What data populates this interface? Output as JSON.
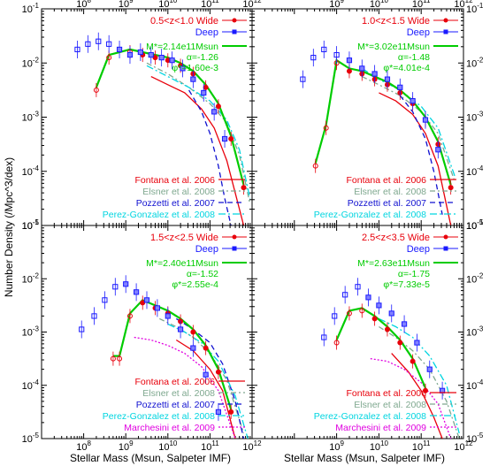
{
  "figure": {
    "xlabel": "Stellar Mass (Msun,  Salpeter IMF)",
    "ylabel": "Number Density (/Mpc^3/dex)",
    "colors": {
      "wide": "#e8000b",
      "deep": "#1a1aff",
      "fit": "#00cc00",
      "fontana": "#e8000b",
      "elsner": "#7fa88f",
      "pozzetti": "#1010d0",
      "perez": "#00d5e0",
      "marchesini": "#e000e0",
      "axis": "#000000"
    },
    "xticks": [
      {
        "v": 8,
        "b": "10",
        "e": "8"
      },
      {
        "v": 9,
        "b": "10",
        "e": "9"
      },
      {
        "v": 10,
        "b": "10",
        "e": "10"
      },
      {
        "v": 11,
        "b": "10",
        "e": "11"
      },
      {
        "v": 12,
        "b": "10",
        "e": "12"
      }
    ],
    "yticks": [
      {
        "v": -5,
        "b": "10",
        "e": "-5"
      },
      {
        "v": -4,
        "b": "10",
        "e": "-4"
      },
      {
        "v": -3,
        "b": "10",
        "e": "-3"
      },
      {
        "v": -2,
        "b": "10",
        "e": "-2"
      },
      {
        "v": -1,
        "b": "10",
        "e": "-1"
      }
    ]
  },
  "chart_data": [
    {
      "type": "scatter",
      "panel": "top-left",
      "xscale": "log",
      "yscale": "log",
      "xlim": [
        10000000.0,
        1000000000000.0
      ],
      "ylim": [
        1e-05,
        0.1
      ],
      "legend": [
        {
          "label": "0.5<z<1.0 Wide",
          "color": "#e8000b"
        },
        {
          "label": "Deep",
          "color": "#1a1aff"
        }
      ],
      "fit_text": [
        "M*=2.14e11Msun",
        "α=-1.26",
        "φ*=1.60e-3"
      ],
      "lit_legend": [
        "Fontana et al. 2006",
        "Elsner et al. 2008",
        "Pozzetti et al. 2007",
        "Perez-Gonzalez et al. 2008"
      ],
      "series": [
        {
          "name": "0.5<z<1.0 Wide",
          "logmass": [
            8.3,
            8.6,
            9.1,
            9.4,
            9.7,
            10.0,
            10.3,
            10.6,
            10.9,
            11.2,
            11.5,
            11.8
          ],
          "logphi": [
            -2.5,
            -1.9,
            -1.8,
            -1.85,
            -1.9,
            -1.95,
            -2.05,
            -2.2,
            -2.45,
            -2.8,
            -3.4,
            -4.3
          ]
        },
        {
          "name": "Deep",
          "logmass": [
            7.85,
            8.1,
            8.35,
            8.6,
            8.85,
            9.1,
            9.35,
            9.6,
            9.85,
            10.1,
            10.35,
            10.6,
            10.85,
            11.1,
            11.35
          ],
          "logphi": [
            -1.75,
            -1.65,
            -1.6,
            -1.65,
            -1.75,
            -1.85,
            -1.8,
            -1.85,
            -1.9,
            -1.95,
            -2.1,
            -2.3,
            -2.55,
            -2.9,
            -3.4
          ]
        },
        {
          "name": "Fontana et al. 2006",
          "logmass": [
            9.6,
            10.0,
            10.4,
            10.8,
            11.1,
            11.4,
            11.6,
            11.8
          ],
          "logphi": [
            -2.25,
            -2.4,
            -2.55,
            -2.85,
            -3.2,
            -3.8,
            -4.4,
            -5.0
          ]
        },
        {
          "name": "Elsner et al. 2008",
          "logmass": [
            9.5,
            10.0,
            10.5,
            11.0,
            11.4,
            11.7,
            11.95
          ],
          "logphi": [
            -2.0,
            -2.2,
            -2.45,
            -2.75,
            -3.1,
            -3.7,
            -4.6
          ]
        },
        {
          "name": "Pozzetti et al. 2007",
          "logmass": [
            10.5,
            10.8,
            11.0,
            11.2,
            11.35,
            11.5
          ],
          "logphi": [
            -2.5,
            -2.9,
            -3.3,
            -3.9,
            -4.5,
            -5.0
          ]
        },
        {
          "name": "Perez-Gonzalez et al. 2008",
          "logmass": [
            9.5,
            10.0,
            10.5,
            11.0,
            11.4,
            11.7,
            11.95
          ],
          "logphi": [
            -2.05,
            -2.25,
            -2.45,
            -2.7,
            -3.05,
            -3.6,
            -4.5
          ]
        }
      ]
    },
    {
      "type": "scatter",
      "panel": "top-right",
      "xscale": "log",
      "yscale": "log",
      "xlim": [
        10000000.0,
        1000000000000.0
      ],
      "ylim": [
        1e-05,
        0.1
      ],
      "legend": [
        {
          "label": "1.0<z<1.5 Wide",
          "color": "#e8000b"
        },
        {
          "label": "Deep",
          "color": "#1a1aff"
        }
      ],
      "fit_text": [
        "M*=3.02e11Msun",
        "α=-1.48",
        "φ*=4.01e-4"
      ],
      "lit_legend": [
        "Fontana et al. 2006",
        "Elsner et al. 2008",
        "Pozzetti et al. 2007",
        "Perez-Gonzalez et al. 2008"
      ],
      "series": [
        {
          "name": "1.0<z<1.5 Wide",
          "logmass": [
            8.5,
            8.75,
            9.0,
            9.3,
            9.6,
            9.9,
            10.2,
            10.5,
            10.8,
            11.1,
            11.4,
            11.7
          ],
          "logphi": [
            -3.9,
            -3.2,
            -2.0,
            -2.15,
            -2.2,
            -2.3,
            -2.4,
            -2.55,
            -2.75,
            -3.05,
            -3.5,
            -4.3
          ]
        },
        {
          "name": "Deep",
          "logmass": [
            8.2,
            8.45,
            8.7,
            9.0,
            9.3,
            9.6,
            9.9,
            10.2,
            10.5,
            10.8,
            11.1,
            11.4
          ],
          "logphi": [
            -2.3,
            -1.9,
            -1.75,
            -1.85,
            -1.95,
            -2.1,
            -2.2,
            -2.3,
            -2.45,
            -2.7,
            -3.05,
            -3.6
          ]
        },
        {
          "name": "Fontana et al. 2006",
          "logmass": [
            10.0,
            10.4,
            10.8,
            11.1,
            11.4,
            11.7
          ],
          "logphi": [
            -2.55,
            -2.7,
            -2.95,
            -3.3,
            -3.9,
            -5.0
          ]
        },
        {
          "name": "Elsner et al. 2008",
          "logmass": [
            9.6,
            10.0,
            10.5,
            11.0,
            11.4,
            11.8
          ],
          "logphi": [
            -2.25,
            -2.4,
            -2.6,
            -2.9,
            -3.3,
            -4.2
          ]
        },
        {
          "name": "Pozzetti et al. 2007",
          "logmass": [
            10.5,
            10.8,
            11.1,
            11.3,
            11.5
          ],
          "logphi": [
            -2.6,
            -2.9,
            -3.4,
            -4.0,
            -4.8
          ]
        },
        {
          "name": "Perez-Gonzalez et al. 2008",
          "logmass": [
            9.6,
            10.0,
            10.5,
            11.0,
            11.4,
            11.8
          ],
          "logphi": [
            -2.1,
            -2.3,
            -2.5,
            -2.8,
            -3.2,
            -4.1
          ]
        }
      ]
    },
    {
      "type": "scatter",
      "panel": "bottom-left",
      "xscale": "log",
      "yscale": "log",
      "xlim": [
        10000000.0,
        1000000000000.0
      ],
      "ylim": [
        1e-05,
        0.1
      ],
      "legend": [
        {
          "label": "1.5<z<2.5 Wide",
          "color": "#e8000b"
        },
        {
          "label": "Deep",
          "color": "#1a1aff"
        }
      ],
      "fit_text": [
        "M*=2.40e11Msun",
        "α=-1.52",
        "φ*=2.55e-4"
      ],
      "lit_legend": [
        "Fontana et al. 2006",
        "Elsner et al. 2008",
        "Pozzetti et al. 2007",
        "Perez-Gonzalez et al. 2008",
        "Marchesini et al. 2009"
      ],
      "series": [
        {
          "name": "1.5<z<2.5 Wide",
          "logmass": [
            8.7,
            8.85,
            9.1,
            9.4,
            9.7,
            10.0,
            10.3,
            10.6,
            10.9,
            11.2,
            11.5
          ],
          "logphi": [
            -3.5,
            -3.5,
            -2.7,
            -2.45,
            -2.55,
            -2.65,
            -2.8,
            -3.0,
            -3.3,
            -3.75,
            -4.5
          ]
        },
        {
          "name": "Deep",
          "logmass": [
            7.95,
            8.25,
            8.5,
            8.75,
            9.0,
            9.25,
            9.5,
            9.75,
            10.0,
            10.3,
            10.6,
            10.9,
            11.2
          ],
          "logphi": [
            -2.95,
            -2.7,
            -2.4,
            -2.15,
            -2.1,
            -2.25,
            -2.4,
            -2.55,
            -2.7,
            -2.95,
            -3.3,
            -3.8,
            -4.5
          ]
        },
        {
          "name": "Fontana et al. 2006",
          "logmass": [
            10.2,
            10.6,
            11.0,
            11.3,
            11.6
          ],
          "logphi": [
            -3.15,
            -3.35,
            -3.7,
            -4.1,
            -5.0
          ]
        },
        {
          "name": "Elsner et al. 2008",
          "logmass": [
            9.8,
            10.2,
            10.6,
            11.0,
            11.4,
            11.8
          ],
          "logphi": [
            -2.75,
            -2.9,
            -3.1,
            -3.4,
            -3.9,
            -4.9
          ]
        },
        {
          "name": "Pozzetti et al. 2007",
          "logmass": [
            10.2,
            10.6,
            11.0,
            11.3,
            11.6,
            11.8
          ],
          "logphi": [
            -2.75,
            -2.95,
            -3.2,
            -3.6,
            -4.3,
            -5.0
          ]
        },
        {
          "name": "Perez-Gonzalez et al. 2008",
          "logmass": [
            10.0,
            10.4,
            10.8,
            11.2,
            11.6,
            11.9
          ],
          "logphi": [
            -2.85,
            -3.0,
            -3.2,
            -3.55,
            -4.2,
            -5.0
          ]
        },
        {
          "name": "Marchesini et al. 2009",
          "logmass": [
            9.2,
            9.6,
            10.0,
            10.4,
            10.8,
            11.2,
            11.6
          ],
          "logphi": [
            -3.1,
            -3.15,
            -3.25,
            -3.4,
            -3.65,
            -4.1,
            -5.0
          ]
        }
      ]
    },
    {
      "type": "scatter",
      "panel": "bottom-right",
      "xscale": "log",
      "yscale": "log",
      "xlim": [
        10000000.0,
        1000000000000.0
      ],
      "ylim": [
        1e-05,
        0.1
      ],
      "legend": [
        {
          "label": "2.5<z<3.5 Wide",
          "color": "#e8000b"
        },
        {
          "label": "Deep",
          "color": "#1a1aff"
        }
      ],
      "fit_text": [
        "M*=2.63e11Msun",
        "α=-1.75",
        "φ*=7.33e-5"
      ],
      "lit_legend": [
        "Fontana et al. 2006",
        "Elsner et al. 2008",
        "Perez-Gonzalez et al. 2008",
        "Marchesini et al. 2009"
      ],
      "series": [
        {
          "name": "2.5<z<3.5 Wide",
          "logmass": [
            9.0,
            9.3,
            9.6,
            9.9,
            10.2,
            10.5,
            10.8,
            11.1
          ],
          "logphi": [
            -3.2,
            -2.65,
            -2.6,
            -2.75,
            -2.95,
            -3.2,
            -3.55,
            -4.1
          ]
        },
        {
          "name": "Deep",
          "logmass": [
            8.7,
            8.95,
            9.2,
            9.5,
            9.75,
            10.0,
            10.3,
            10.6,
            10.9,
            11.2,
            11.5
          ],
          "logphi": [
            -3.1,
            -2.7,
            -2.3,
            -2.15,
            -2.35,
            -2.5,
            -2.65,
            -2.85,
            -3.2,
            -3.7,
            -4.1
          ]
        },
        {
          "name": "Fontana et al. 2006",
          "logmass": [
            10.3,
            10.7,
            11.0,
            11.3,
            11.5
          ],
          "logphi": [
            -3.4,
            -3.75,
            -4.1,
            -4.6,
            -5.0
          ]
        },
        {
          "name": "Elsner et al. 2008",
          "logmass": [
            10.0,
            10.4,
            10.8,
            11.2,
            11.6,
            11.9
          ],
          "logphi": [
            -2.9,
            -3.1,
            -3.35,
            -3.7,
            -4.3,
            -5.0
          ]
        },
        {
          "name": "Perez-Gonzalez et al. 2008",
          "logmass": [
            10.0,
            10.4,
            10.8,
            11.2,
            11.6,
            11.9
          ],
          "logphi": [
            -2.75,
            -2.9,
            -3.1,
            -3.45,
            -4.0,
            -4.9
          ]
        },
        {
          "name": "Marchesini et al. 2009",
          "logmass": [
            9.8,
            10.2,
            10.6,
            11.0,
            11.4,
            11.7
          ],
          "logphi": [
            -3.5,
            -3.55,
            -3.7,
            -3.95,
            -4.35,
            -5.0
          ]
        }
      ]
    }
  ]
}
